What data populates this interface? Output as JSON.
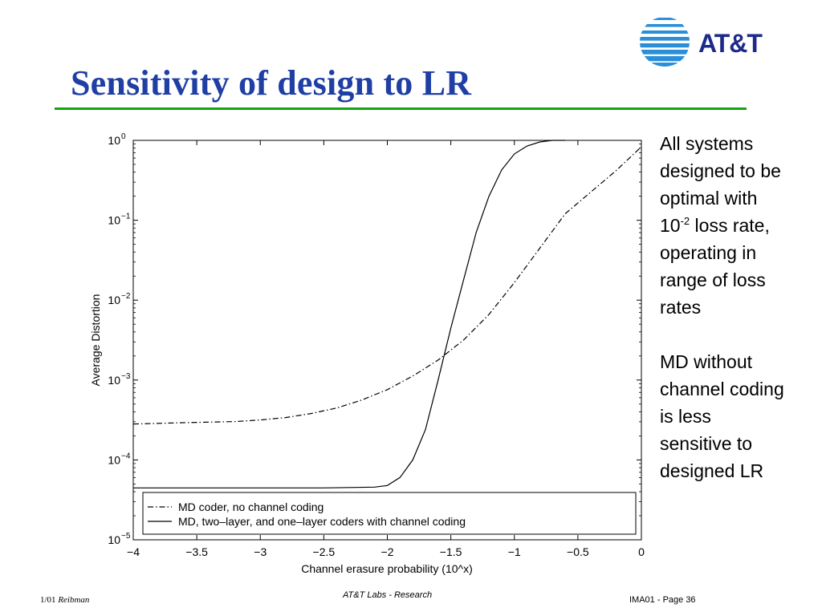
{
  "slide": {
    "title": "Sensitivity of design to LR",
    "logo_text": "AT&T",
    "notes": {
      "para1": {
        "line1": "All systems",
        "line2": "designed to be",
        "line3": "optimal with",
        "base": "10",
        "exponent": "-2",
        "after_exponent": " loss rate,",
        "line5": "operating in",
        "line6": "range of loss",
        "line7": "rates"
      },
      "para2": {
        "line1": "MD without",
        "line2": "channel coding",
        "line3": "is less",
        "line4": "sensitive to",
        "line5": "designed LR"
      }
    },
    "footer": {
      "date": "1/01",
      "author": "Reibman",
      "center": "AT&T Labs - Research",
      "page": "IMA01 - Page 36"
    }
  },
  "colors": {
    "title": "#1f3fa5",
    "rule": "#12a412",
    "logo_blue": "#2a8fd8",
    "logo_text": "#1d2a8a"
  },
  "chart_data": {
    "type": "line",
    "xlabel": "Channel erasure probability (10^x)",
    "ylabel": "Average Distortion",
    "xlim": [
      -4,
      0
    ],
    "ylim": [
      -5,
      0
    ],
    "y_scale": "log10",
    "x_ticks": [
      {
        "value": -4,
        "label": "−4"
      },
      {
        "value": -3.5,
        "label": "−3.5"
      },
      {
        "value": -3,
        "label": "−3"
      },
      {
        "value": -2.5,
        "label": "−2.5"
      },
      {
        "value": -2,
        "label": "−2"
      },
      {
        "value": -1.5,
        "label": "−1.5"
      },
      {
        "value": -1,
        "label": "−1"
      },
      {
        "value": -0.5,
        "label": "−0.5"
      },
      {
        "value": 0,
        "label": "0"
      }
    ],
    "y_ticks": [
      {
        "value": 0,
        "base": "10",
        "exp": "0"
      },
      {
        "value": -1,
        "base": "10",
        "exp": "−1"
      },
      {
        "value": -2,
        "base": "10",
        "exp": "−2"
      },
      {
        "value": -3,
        "base": "10",
        "exp": "−3"
      },
      {
        "value": -4,
        "base": "10",
        "exp": "−4"
      },
      {
        "value": -5,
        "base": "10",
        "exp": "−5"
      }
    ],
    "legend_position": "bottom",
    "series": [
      {
        "name": "MD coder, no channel coding",
        "style": "dash-dot",
        "points": [
          [
            -4,
            -3.55
          ],
          [
            -3.5,
            -3.53
          ],
          [
            -3.2,
            -3.52
          ],
          [
            -3,
            -3.5
          ],
          [
            -2.8,
            -3.47
          ],
          [
            -2.6,
            -3.42
          ],
          [
            -2.4,
            -3.35
          ],
          [
            -2.2,
            -3.25
          ],
          [
            -2,
            -3.12
          ],
          [
            -1.8,
            -2.95
          ],
          [
            -1.6,
            -2.75
          ],
          [
            -1.4,
            -2.5
          ],
          [
            -1.2,
            -2.18
          ],
          [
            -1,
            -1.78
          ],
          [
            -0.8,
            -1.35
          ],
          [
            -0.6,
            -0.92
          ],
          [
            -0.4,
            -0.65
          ],
          [
            -0.2,
            -0.38
          ],
          [
            0,
            -0.08
          ]
        ]
      },
      {
        "name": "MD, two–layer, and one–layer coders with channel coding",
        "style": "solid",
        "points": [
          [
            -4,
            -4.35
          ],
          [
            -3.5,
            -4.35
          ],
          [
            -3,
            -4.35
          ],
          [
            -2.5,
            -4.35
          ],
          [
            -2.1,
            -4.34
          ],
          [
            -2,
            -4.32
          ],
          [
            -1.9,
            -4.22
          ],
          [
            -1.8,
            -4.0
          ],
          [
            -1.7,
            -3.62
          ],
          [
            -1.6,
            -3.0
          ],
          [
            -1.5,
            -2.35
          ],
          [
            -1.4,
            -1.75
          ],
          [
            -1.3,
            -1.15
          ],
          [
            -1.2,
            -0.7
          ],
          [
            -1.1,
            -0.37
          ],
          [
            -1,
            -0.17
          ],
          [
            -0.9,
            -0.07
          ],
          [
            -0.8,
            -0.02
          ],
          [
            -0.7,
            0
          ],
          [
            -0.6,
            0
          ]
        ]
      }
    ]
  }
}
